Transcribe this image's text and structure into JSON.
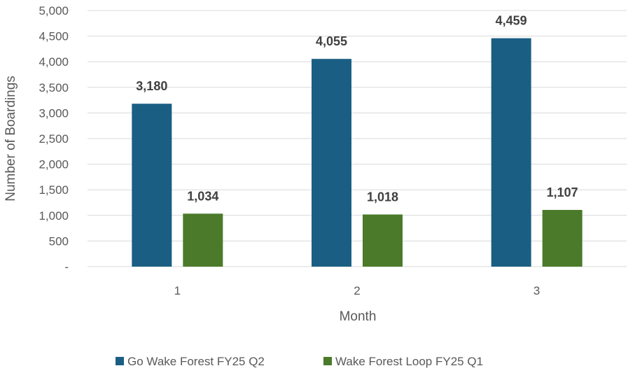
{
  "chart_data": {
    "type": "bar",
    "title": "",
    "xlabel": "Month",
    "ylabel": "Number of Boardings",
    "categories": [
      "1",
      "2",
      "3"
    ],
    "ylim": [
      0,
      5000
    ],
    "yticks": [
      0,
      500,
      1000,
      1500,
      2000,
      2500,
      3000,
      3500,
      4000,
      4500,
      5000
    ],
    "ytick_labels": [
      "-",
      "500",
      "1,000",
      "1,500",
      "2,000",
      "2,500",
      "3,000",
      "3,500",
      "4,000",
      "4,500",
      "5,000"
    ],
    "grid": true,
    "legend_position": "bottom",
    "series": [
      {
        "name": "Go Wake Forest FY25 Q2",
        "color": "#1a5e83",
        "values": [
          3180,
          4055,
          4459
        ],
        "labels": [
          "3,180",
          "4,055",
          "4,459"
        ]
      },
      {
        "name": "Wake Forest Loop FY25 Q1",
        "color": "#4a7a2a",
        "values": [
          1034,
          1018,
          1107
        ],
        "labels": [
          "1,034",
          "1,018",
          "1,107"
        ]
      }
    ]
  }
}
